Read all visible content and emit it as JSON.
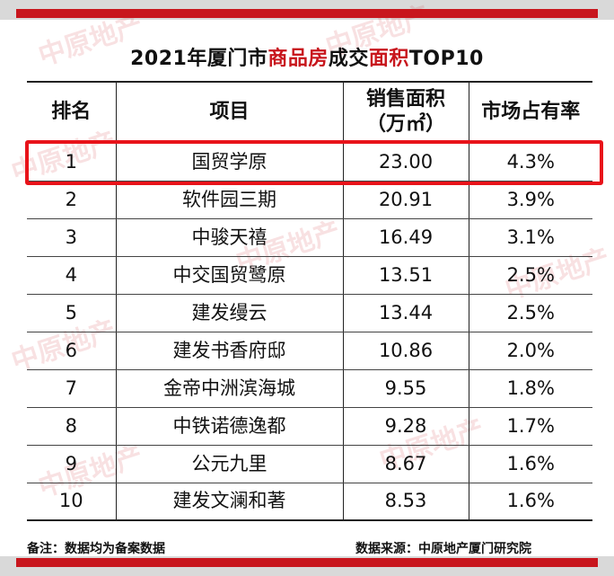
{
  "title": {
    "part1": "2021年厦门市",
    "part2": "商品房",
    "part3": "成交",
    "part4": "面积",
    "part5": "TOP10"
  },
  "table": {
    "headers": {
      "rank": "排名",
      "project": "项目",
      "area_line1": "销售面积",
      "area_line2": "（万㎡）",
      "share": "市场占有率"
    },
    "rows": [
      {
        "rank": "1",
        "project": "国贸学原",
        "area": "23.00",
        "share": "4.3%"
      },
      {
        "rank": "2",
        "project": "软件园三期",
        "area": "20.91",
        "share": "3.9%"
      },
      {
        "rank": "3",
        "project": "中骏天禧",
        "area": "16.49",
        "share": "3.1%"
      },
      {
        "rank": "4",
        "project": "中交国贸鹭原",
        "area": "13.51",
        "share": "2.5%"
      },
      {
        "rank": "5",
        "project": "建发缦云",
        "area": "13.44",
        "share": "2.5%"
      },
      {
        "rank": "6",
        "project": "建发书香府邸",
        "area": "10.86",
        "share": "2.0%"
      },
      {
        "rank": "7",
        "project": "金帝中洲滨海城",
        "area": "9.55",
        "share": "1.8%"
      },
      {
        "rank": "8",
        "project": "中铁诺德逸都",
        "area": "9.28",
        "share": "1.7%"
      },
      {
        "rank": "9",
        "project": "公元九里",
        "area": "8.67",
        "share": "1.6%"
      },
      {
        "rank": "10",
        "project": "建发文澜和著",
        "area": "8.53",
        "share": "1.6%"
      }
    ]
  },
  "footer": {
    "note": "备注：数据均为备案数据",
    "source": "数据来源：中原地产厦门研究院"
  },
  "watermark_text": "中原地产",
  "colors": {
    "accent_red": "#c8161d",
    "highlight_red": "#e8131a",
    "band_grey": "#d9d9d9"
  }
}
